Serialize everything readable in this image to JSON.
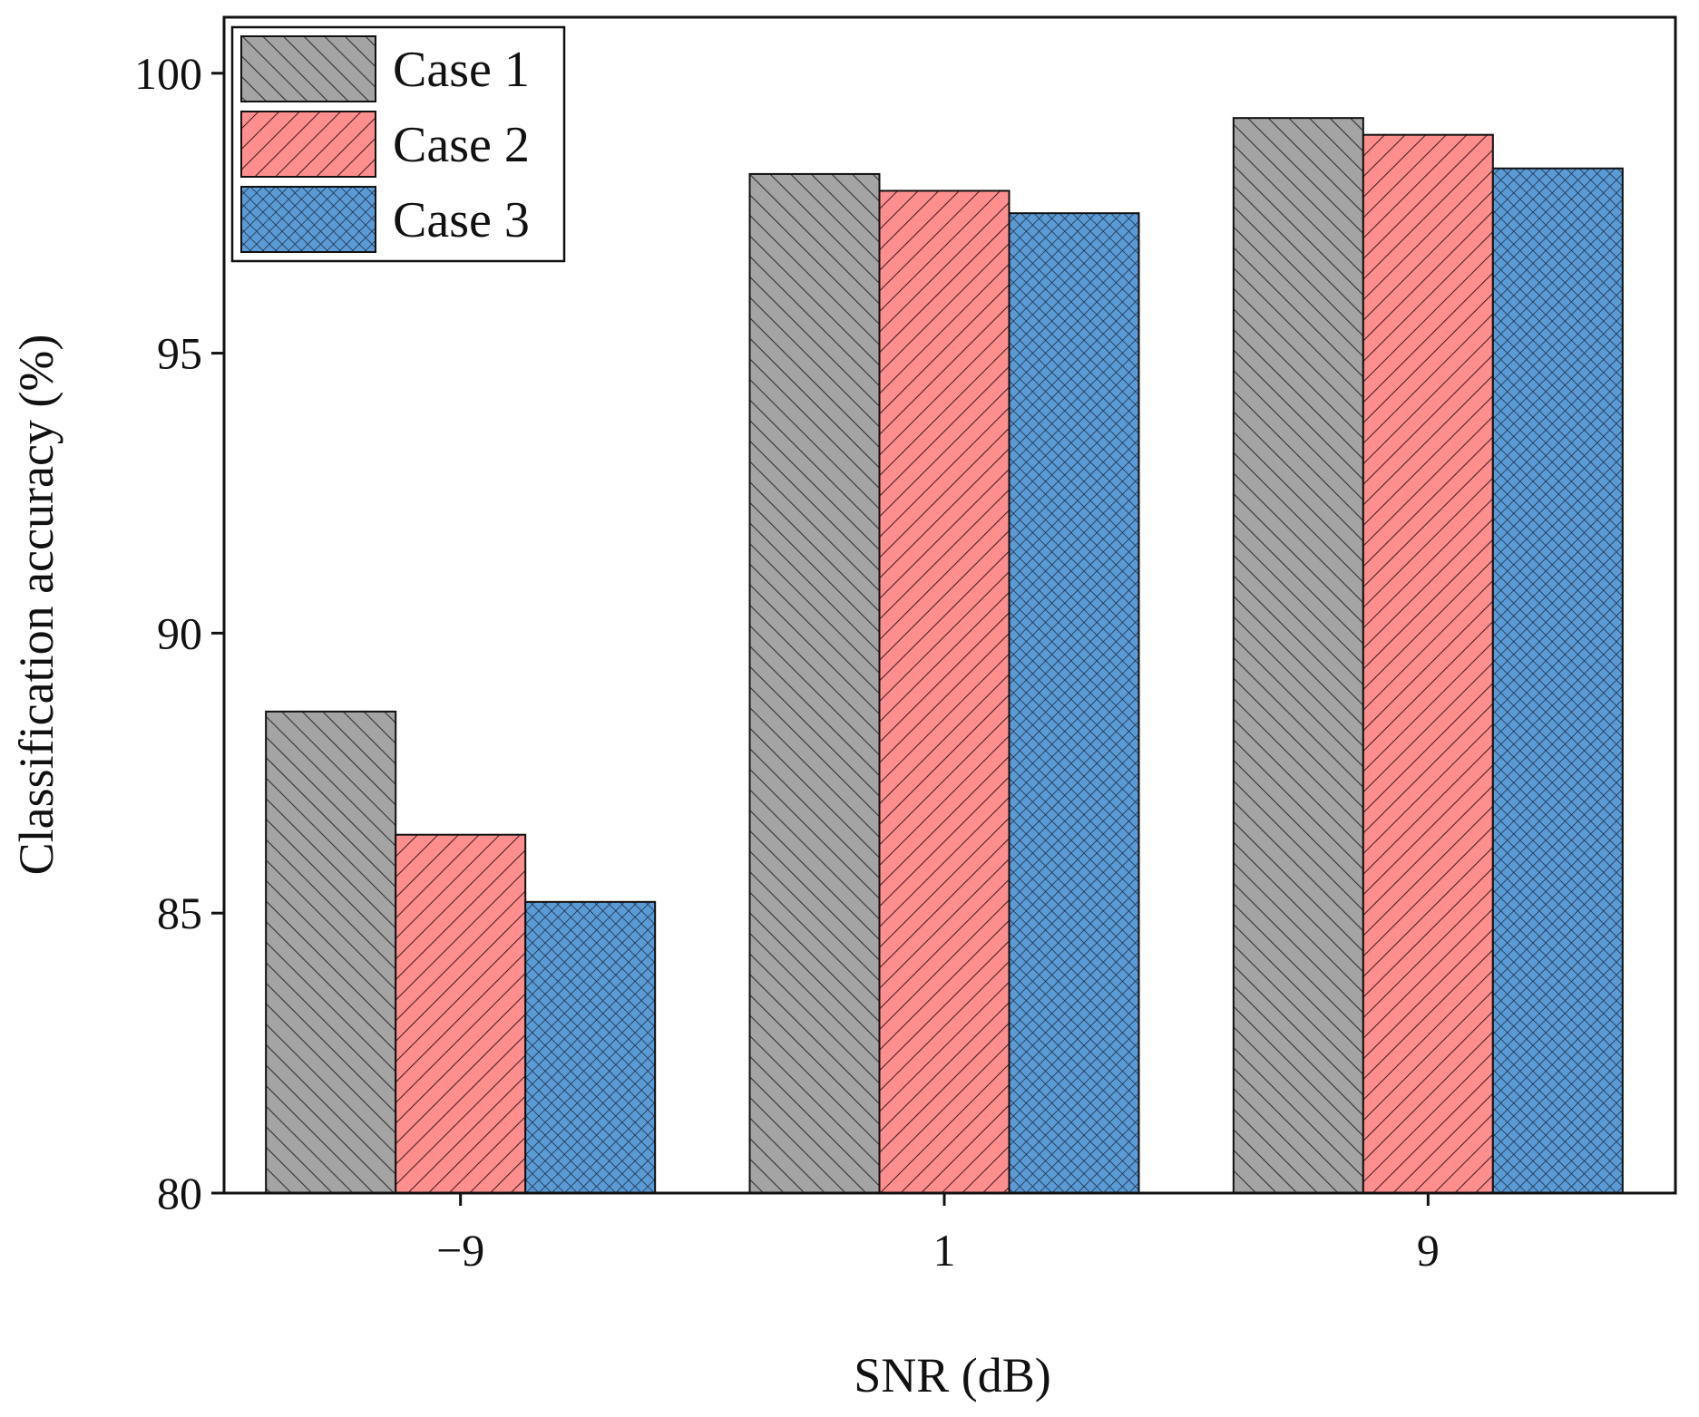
{
  "chart_data": {
    "type": "bar",
    "title": "",
    "xlabel": "SNR (dB)",
    "ylabel": "Classification accuracy (%)",
    "categories": [
      "−9",
      "1",
      "9"
    ],
    "ylim": [
      80,
      101
    ],
    "yticks": [
      80,
      85,
      90,
      95,
      100
    ],
    "grid": false,
    "legend_position": "top-left",
    "series": [
      {
        "name": "Case 1",
        "values": [
          88.6,
          98.2,
          99.2
        ],
        "color": "#a4a4a4",
        "pattern": "back-diagonal"
      },
      {
        "name": "Case 2",
        "values": [
          86.4,
          97.9,
          98.9
        ],
        "color": "#ff8f8f",
        "pattern": "forward-diagonal"
      },
      {
        "name": "Case 3",
        "values": [
          85.2,
          97.5,
          98.3
        ],
        "color": "#5b9bd5",
        "pattern": "crosshatch"
      }
    ]
  }
}
